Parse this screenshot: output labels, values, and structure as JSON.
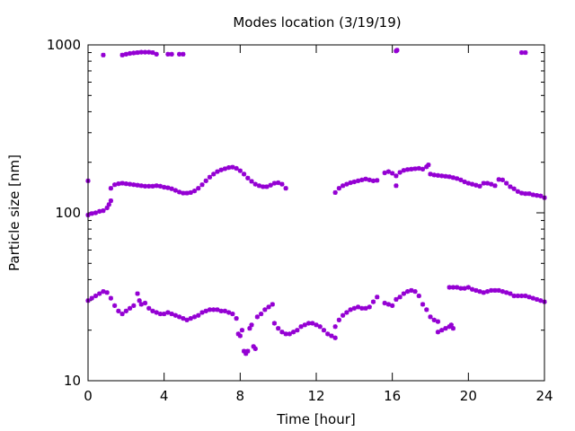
{
  "chart_data": {
    "type": "scatter",
    "title": "Modes location (3/19/19)",
    "xlabel": "Time [hour]",
    "ylabel": "Particle size [nm]",
    "xlim": [
      0,
      24
    ],
    "ylim": [
      10,
      1000
    ],
    "yscale": "log",
    "grid": false,
    "legend": "none",
    "x_ticks": [
      0,
      4,
      8,
      12,
      16,
      20,
      24
    ],
    "x_tick_labels": [
      "0",
      "4",
      "8",
      "12",
      "16",
      "20",
      "24"
    ],
    "y_ticks": [
      10,
      100,
      1000
    ],
    "y_tick_labels": [
      "10",
      "100",
      "1000"
    ],
    "marker_color": "#9400d3",
    "series": [
      {
        "points": [
          [
            0.0,
            155
          ],
          [
            0.0,
            97
          ],
          [
            0.2,
            99
          ],
          [
            0.4,
            100
          ],
          [
            0.6,
            102
          ],
          [
            0.8,
            103
          ],
          [
            1.0,
            107
          ],
          [
            1.1,
            112
          ],
          [
            1.2,
            118
          ],
          [
            1.2,
            140
          ],
          [
            1.4,
            147
          ],
          [
            1.6,
            149
          ],
          [
            1.8,
            150
          ],
          [
            2.0,
            149
          ],
          [
            2.2,
            148
          ],
          [
            2.4,
            147
          ],
          [
            2.6,
            146
          ],
          [
            2.8,
            145
          ],
          [
            3.0,
            144
          ],
          [
            3.2,
            144
          ],
          [
            3.4,
            144
          ],
          [
            3.6,
            145
          ],
          [
            3.8,
            144
          ],
          [
            4.0,
            142
          ],
          [
            4.2,
            141
          ],
          [
            4.4,
            139
          ],
          [
            4.6,
            136
          ],
          [
            4.8,
            133
          ],
          [
            5.0,
            131
          ],
          [
            5.2,
            131
          ],
          [
            5.4,
            132
          ],
          [
            5.6,
            135
          ],
          [
            5.8,
            140
          ],
          [
            6.0,
            147
          ],
          [
            6.2,
            155
          ],
          [
            6.4,
            163
          ],
          [
            6.6,
            170
          ],
          [
            6.8,
            176
          ],
          [
            7.0,
            180
          ],
          [
            7.2,
            183
          ],
          [
            7.4,
            186
          ],
          [
            7.6,
            187
          ],
          [
            7.8,
            184
          ],
          [
            8.0,
            178
          ],
          [
            8.2,
            170
          ],
          [
            8.4,
            161
          ],
          [
            8.6,
            154
          ],
          [
            8.8,
            148
          ],
          [
            9.0,
            145
          ],
          [
            9.2,
            143
          ],
          [
            9.4,
            143
          ],
          [
            9.6,
            146
          ],
          [
            9.8,
            150
          ],
          [
            10.0,
            151
          ],
          [
            10.2,
            148
          ],
          [
            10.4,
            140
          ],
          [
            13.0,
            132
          ],
          [
            13.2,
            140
          ],
          [
            13.4,
            145
          ],
          [
            13.6,
            148
          ],
          [
            13.8,
            151
          ],
          [
            14.0,
            153
          ],
          [
            14.2,
            155
          ],
          [
            14.4,
            157
          ],
          [
            14.6,
            159
          ],
          [
            14.8,
            157
          ],
          [
            15.0,
            155
          ],
          [
            15.2,
            156
          ],
          [
            15.6,
            173
          ],
          [
            15.8,
            176
          ],
          [
            16.0,
            172
          ],
          [
            16.2,
            166
          ],
          [
            16.2,
            145
          ],
          [
            16.4,
            174
          ],
          [
            16.6,
            179
          ],
          [
            16.8,
            181
          ],
          [
            17.0,
            182
          ],
          [
            17.2,
            183
          ],
          [
            17.4,
            184
          ],
          [
            17.6,
            182
          ],
          [
            17.8,
            188
          ],
          [
            17.9,
            193
          ],
          [
            18.0,
            170
          ],
          [
            18.2,
            168
          ],
          [
            18.4,
            167
          ],
          [
            18.6,
            166
          ],
          [
            18.8,
            165
          ],
          [
            19.0,
            164
          ],
          [
            19.2,
            162
          ],
          [
            19.4,
            160
          ],
          [
            19.6,
            157
          ],
          [
            19.8,
            153
          ],
          [
            20.0,
            150
          ],
          [
            20.2,
            148
          ],
          [
            20.4,
            146
          ],
          [
            20.6,
            144
          ],
          [
            20.8,
            150
          ],
          [
            21.0,
            150
          ],
          [
            21.2,
            148
          ],
          [
            21.4,
            145
          ],
          [
            21.6,
            158
          ],
          [
            21.8,
            157
          ],
          [
            22.0,
            150
          ],
          [
            22.2,
            143
          ],
          [
            22.4,
            139
          ],
          [
            22.6,
            134
          ],
          [
            22.8,
            131
          ],
          [
            23.0,
            130
          ],
          [
            23.2,
            130
          ],
          [
            23.4,
            128
          ],
          [
            23.6,
            127
          ],
          [
            23.8,
            126
          ],
          [
            24.0,
            123
          ],
          [
            0.0,
            30
          ],
          [
            0.2,
            31
          ],
          [
            0.4,
            32
          ],
          [
            0.6,
            33
          ],
          [
            0.8,
            34
          ],
          [
            1.0,
            33.5
          ],
          [
            1.2,
            31
          ],
          [
            1.4,
            28
          ],
          [
            1.6,
            26
          ],
          [
            1.8,
            25
          ],
          [
            2.0,
            26
          ],
          [
            2.2,
            27
          ],
          [
            2.4,
            28
          ],
          [
            2.6,
            33
          ],
          [
            2.8,
            28.5
          ],
          [
            2.7,
            30
          ],
          [
            3.0,
            29
          ],
          [
            3.2,
            27
          ],
          [
            3.4,
            26
          ],
          [
            3.6,
            25.5
          ],
          [
            3.8,
            25
          ],
          [
            4.0,
            25
          ],
          [
            4.2,
            25.5
          ],
          [
            4.4,
            25
          ],
          [
            4.6,
            24.5
          ],
          [
            4.8,
            24
          ],
          [
            5.0,
            23.5
          ],
          [
            5.2,
            23
          ],
          [
            5.4,
            23.5
          ],
          [
            5.6,
            24
          ],
          [
            5.8,
            24.5
          ],
          [
            6.0,
            25.5
          ],
          [
            6.2,
            26
          ],
          [
            6.4,
            26.5
          ],
          [
            6.6,
            26.5
          ],
          [
            6.8,
            26.5
          ],
          [
            7.0,
            26
          ],
          [
            7.2,
            26
          ],
          [
            7.4,
            25.5
          ],
          [
            7.6,
            25
          ],
          [
            7.8,
            23.5
          ],
          [
            7.9,
            19
          ],
          [
            8.0,
            18.5
          ],
          [
            8.1,
            20
          ],
          [
            8.2,
            15
          ],
          [
            8.3,
            14.5
          ],
          [
            8.4,
            15
          ],
          [
            8.5,
            20.5
          ],
          [
            8.6,
            21.5
          ],
          [
            8.7,
            16
          ],
          [
            8.8,
            15.5
          ],
          [
            8.9,
            24
          ],
          [
            9.1,
            25
          ],
          [
            9.3,
            26.5
          ],
          [
            9.5,
            27.5
          ],
          [
            9.7,
            28.5
          ],
          [
            9.8,
            22
          ],
          [
            10.0,
            20.5
          ],
          [
            10.2,
            19.5
          ],
          [
            10.4,
            19
          ],
          [
            10.6,
            19
          ],
          [
            10.8,
            19.5
          ],
          [
            11.0,
            20
          ],
          [
            11.2,
            21
          ],
          [
            11.4,
            21.5
          ],
          [
            11.6,
            22
          ],
          [
            11.8,
            22
          ],
          [
            12.0,
            21.5
          ],
          [
            12.2,
            21
          ],
          [
            12.4,
            20
          ],
          [
            12.6,
            19
          ],
          [
            12.8,
            18.5
          ],
          [
            13.0,
            18
          ],
          [
            13.0,
            21
          ],
          [
            13.2,
            23
          ],
          [
            13.4,
            24.5
          ],
          [
            13.6,
            25.5
          ],
          [
            13.8,
            26.5
          ],
          [
            14.0,
            27
          ],
          [
            14.2,
            27.5
          ],
          [
            14.4,
            27
          ],
          [
            14.6,
            27
          ],
          [
            14.8,
            27.5
          ],
          [
            15.0,
            29.5
          ],
          [
            15.2,
            31.5
          ],
          [
            15.6,
            29
          ],
          [
            15.8,
            28.5
          ],
          [
            16.0,
            28
          ],
          [
            16.2,
            30.5
          ],
          [
            16.4,
            31.5
          ],
          [
            16.6,
            33
          ],
          [
            16.8,
            34
          ],
          [
            17.0,
            34.5
          ],
          [
            17.2,
            34
          ],
          [
            17.4,
            32
          ],
          [
            17.6,
            28.5
          ],
          [
            17.8,
            26.5
          ],
          [
            18.0,
            24
          ],
          [
            18.2,
            23
          ],
          [
            18.4,
            22.5
          ],
          [
            18.4,
            19.5
          ],
          [
            18.6,
            20
          ],
          [
            18.8,
            20.5
          ],
          [
            19.0,
            21
          ],
          [
            19.2,
            20.5
          ],
          [
            19.1,
            21.5
          ],
          [
            19.0,
            36
          ],
          [
            19.2,
            36
          ],
          [
            19.4,
            36
          ],
          [
            19.6,
            35.5
          ],
          [
            19.8,
            35.5
          ],
          [
            20.0,
            36
          ],
          [
            20.2,
            35
          ],
          [
            20.4,
            34.5
          ],
          [
            20.6,
            34
          ],
          [
            20.8,
            33.5
          ],
          [
            21.0,
            34
          ],
          [
            21.2,
            34.5
          ],
          [
            21.4,
            34.5
          ],
          [
            21.6,
            34.5
          ],
          [
            21.8,
            34
          ],
          [
            22.0,
            33.5
          ],
          [
            22.2,
            33
          ],
          [
            22.4,
            32
          ],
          [
            22.6,
            32
          ],
          [
            22.8,
            32
          ],
          [
            23.0,
            32
          ],
          [
            23.2,
            31.5
          ],
          [
            23.4,
            31
          ],
          [
            23.6,
            30.5
          ],
          [
            23.8,
            30
          ],
          [
            24.0,
            29.5
          ],
          [
            0.8,
            870
          ],
          [
            1.8,
            870
          ],
          [
            2.0,
            880
          ],
          [
            2.2,
            890
          ],
          [
            2.4,
            895
          ],
          [
            2.6,
            900
          ],
          [
            2.8,
            905
          ],
          [
            3.0,
            905
          ],
          [
            3.2,
            905
          ],
          [
            3.4,
            900
          ],
          [
            3.6,
            880
          ],
          [
            4.2,
            880
          ],
          [
            4.4,
            880
          ],
          [
            4.8,
            880
          ],
          [
            5.0,
            880
          ],
          [
            16.2,
            920
          ],
          [
            16.25,
            930
          ],
          [
            22.8,
            900
          ],
          [
            23.0,
            900
          ]
        ]
      }
    ]
  }
}
